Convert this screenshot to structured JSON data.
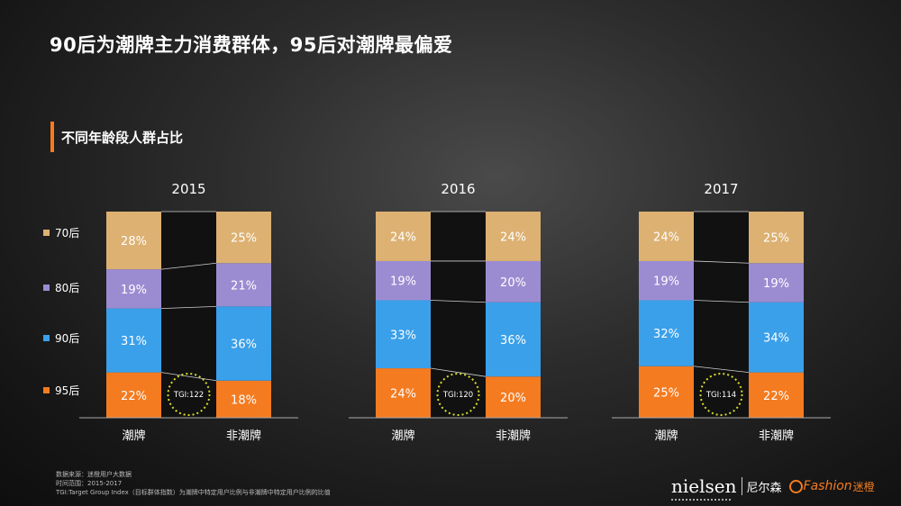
{
  "page": {
    "title": "90后为潮牌主力消费群体，95后对潮牌最偏爱",
    "subtitle": "不同年龄段人群占比"
  },
  "colors": {
    "accent": "#f47b20",
    "s70": "#dcb172",
    "s80": "#9b8cd2",
    "s90": "#3aa0ea",
    "s95": "#f47b20",
    "tgi_circle": "#d7dc2c",
    "background": "#1a1a1a"
  },
  "chart_data": {
    "type": "bar",
    "stacked": true,
    "legend": [
      "70后",
      "80后",
      "90后",
      "95后"
    ],
    "panels": [
      {
        "year": "2015",
        "categories": [
          "潮牌",
          "非潮牌"
        ],
        "series": [
          {
            "name": "95后",
            "values": [
              22,
              18
            ],
            "labels": [
              "22%",
              "18%"
            ]
          },
          {
            "name": "90后",
            "values": [
              31,
              36
            ],
            "labels": [
              "31%",
              "36%"
            ]
          },
          {
            "name": "80后",
            "values": [
              19,
              21
            ],
            "labels": [
              "19%",
              "21%"
            ]
          },
          {
            "name": "70后",
            "values": [
              28,
              25
            ],
            "labels": [
              "28%",
              "25%"
            ]
          }
        ],
        "tgi": "TGI:122"
      },
      {
        "year": "2016",
        "categories": [
          "潮牌",
          "非潮牌"
        ],
        "series": [
          {
            "name": "95后",
            "values": [
              24,
              20
            ],
            "labels": [
              "24%",
              "20%"
            ]
          },
          {
            "name": "90后",
            "values": [
              33,
              36
            ],
            "labels": [
              "33%",
              "36%"
            ]
          },
          {
            "name": "80后",
            "values": [
              19,
              20
            ],
            "labels": [
              "19%",
              "20%"
            ]
          },
          {
            "name": "70后",
            "values": [
              24,
              24
            ],
            "labels": [
              "24%",
              "24%"
            ]
          }
        ],
        "tgi": "TGI:120"
      },
      {
        "year": "2017",
        "categories": [
          "潮牌",
          "非潮牌"
        ],
        "series": [
          {
            "name": "95后",
            "values": [
              25,
              22
            ],
            "labels": [
              "25%",
              "22%"
            ]
          },
          {
            "name": "90后",
            "values": [
              32,
              34
            ],
            "labels": [
              "32%",
              "34%"
            ]
          },
          {
            "name": "80后",
            "values": [
              19,
              19
            ],
            "labels": [
              "19%",
              "19%"
            ]
          },
          {
            "name": "70后",
            "values": [
              24,
              25
            ],
            "labels": [
              "24%",
              "25%"
            ]
          }
        ],
        "tgi": "TGI:114"
      }
    ]
  },
  "footnotes": [
    "数据来源：迷橙用户大数据",
    "时间范围：2015-2017",
    "TGI:Target Group Index（目标群体指数）为潮牌中特定用户比例与非潮牌中特定用户比例的比值"
  ],
  "brand": {
    "nielsen": "nielsen",
    "nielsen_cn": "尼尔森",
    "fashion": "Fashion",
    "fashion_cn": "迷橙"
  }
}
